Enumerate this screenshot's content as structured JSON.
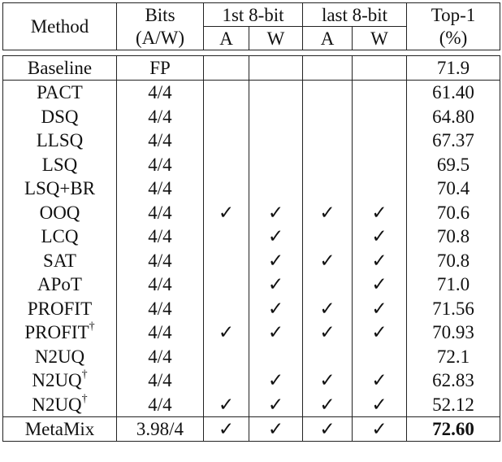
{
  "header": {
    "method": "Method",
    "bits_line1": "Bits",
    "bits_line2": "(A/W)",
    "first8": "1st 8-bit",
    "last8": "last 8-bit",
    "top1_line1": "Top-1",
    "top1_line2": "(%)",
    "sub_a": "A",
    "sub_w": "W"
  },
  "check_glyph": "✓",
  "rows": [
    {
      "method": "Baseline",
      "dagger": "",
      "bits": "FP",
      "c": [
        0,
        0,
        0,
        0
      ],
      "top1": "71.9"
    },
    {
      "method": "PACT",
      "dagger": "",
      "bits": "4/4",
      "c": [
        0,
        0,
        0,
        0
      ],
      "top1": "61.40"
    },
    {
      "method": "DSQ",
      "dagger": "",
      "bits": "4/4",
      "c": [
        0,
        0,
        0,
        0
      ],
      "top1": "64.80"
    },
    {
      "method": "LLSQ",
      "dagger": "",
      "bits": "4/4",
      "c": [
        0,
        0,
        0,
        0
      ],
      "top1": "67.37"
    },
    {
      "method": "LSQ",
      "dagger": "",
      "bits": "4/4",
      "c": [
        0,
        0,
        0,
        0
      ],
      "top1": "69.5"
    },
    {
      "method": "LSQ+BR",
      "dagger": "",
      "bits": "4/4",
      "c": [
        0,
        0,
        0,
        0
      ],
      "top1": "70.4"
    },
    {
      "method": "OOQ",
      "dagger": "",
      "bits": "4/4",
      "c": [
        1,
        1,
        1,
        1
      ],
      "top1": "70.6"
    },
    {
      "method": "LCQ",
      "dagger": "",
      "bits": "4/4",
      "c": [
        0,
        1,
        0,
        1
      ],
      "top1": "70.8"
    },
    {
      "method": "SAT",
      "dagger": "",
      "bits": "4/4",
      "c": [
        0,
        1,
        1,
        1
      ],
      "top1": "70.8"
    },
    {
      "method": "APoT",
      "dagger": "",
      "bits": "4/4",
      "c": [
        0,
        1,
        0,
        1
      ],
      "top1": "71.0"
    },
    {
      "method": "PROFIT",
      "dagger": "",
      "bits": "4/4",
      "c": [
        0,
        1,
        1,
        1
      ],
      "top1": "71.56"
    },
    {
      "method": "PROFIT",
      "dagger": "†",
      "bits": "4/4",
      "c": [
        1,
        1,
        1,
        1
      ],
      "top1": "70.93"
    },
    {
      "method": "N2UQ",
      "dagger": "",
      "bits": "4/4",
      "c": [
        0,
        0,
        0,
        0
      ],
      "top1": "72.1"
    },
    {
      "method": "N2UQ",
      "dagger": "†",
      "bits": "4/4",
      "c": [
        0,
        1,
        1,
        1
      ],
      "top1": "62.83"
    },
    {
      "method": "N2UQ",
      "dagger": "†",
      "bits": "4/4",
      "c": [
        1,
        1,
        1,
        1
      ],
      "top1": "52.12"
    },
    {
      "method": "MetaMix",
      "dagger": "",
      "bits": "3.98/4",
      "c": [
        1,
        1,
        1,
        1
      ],
      "top1": "72.60",
      "bold": true
    }
  ]
}
